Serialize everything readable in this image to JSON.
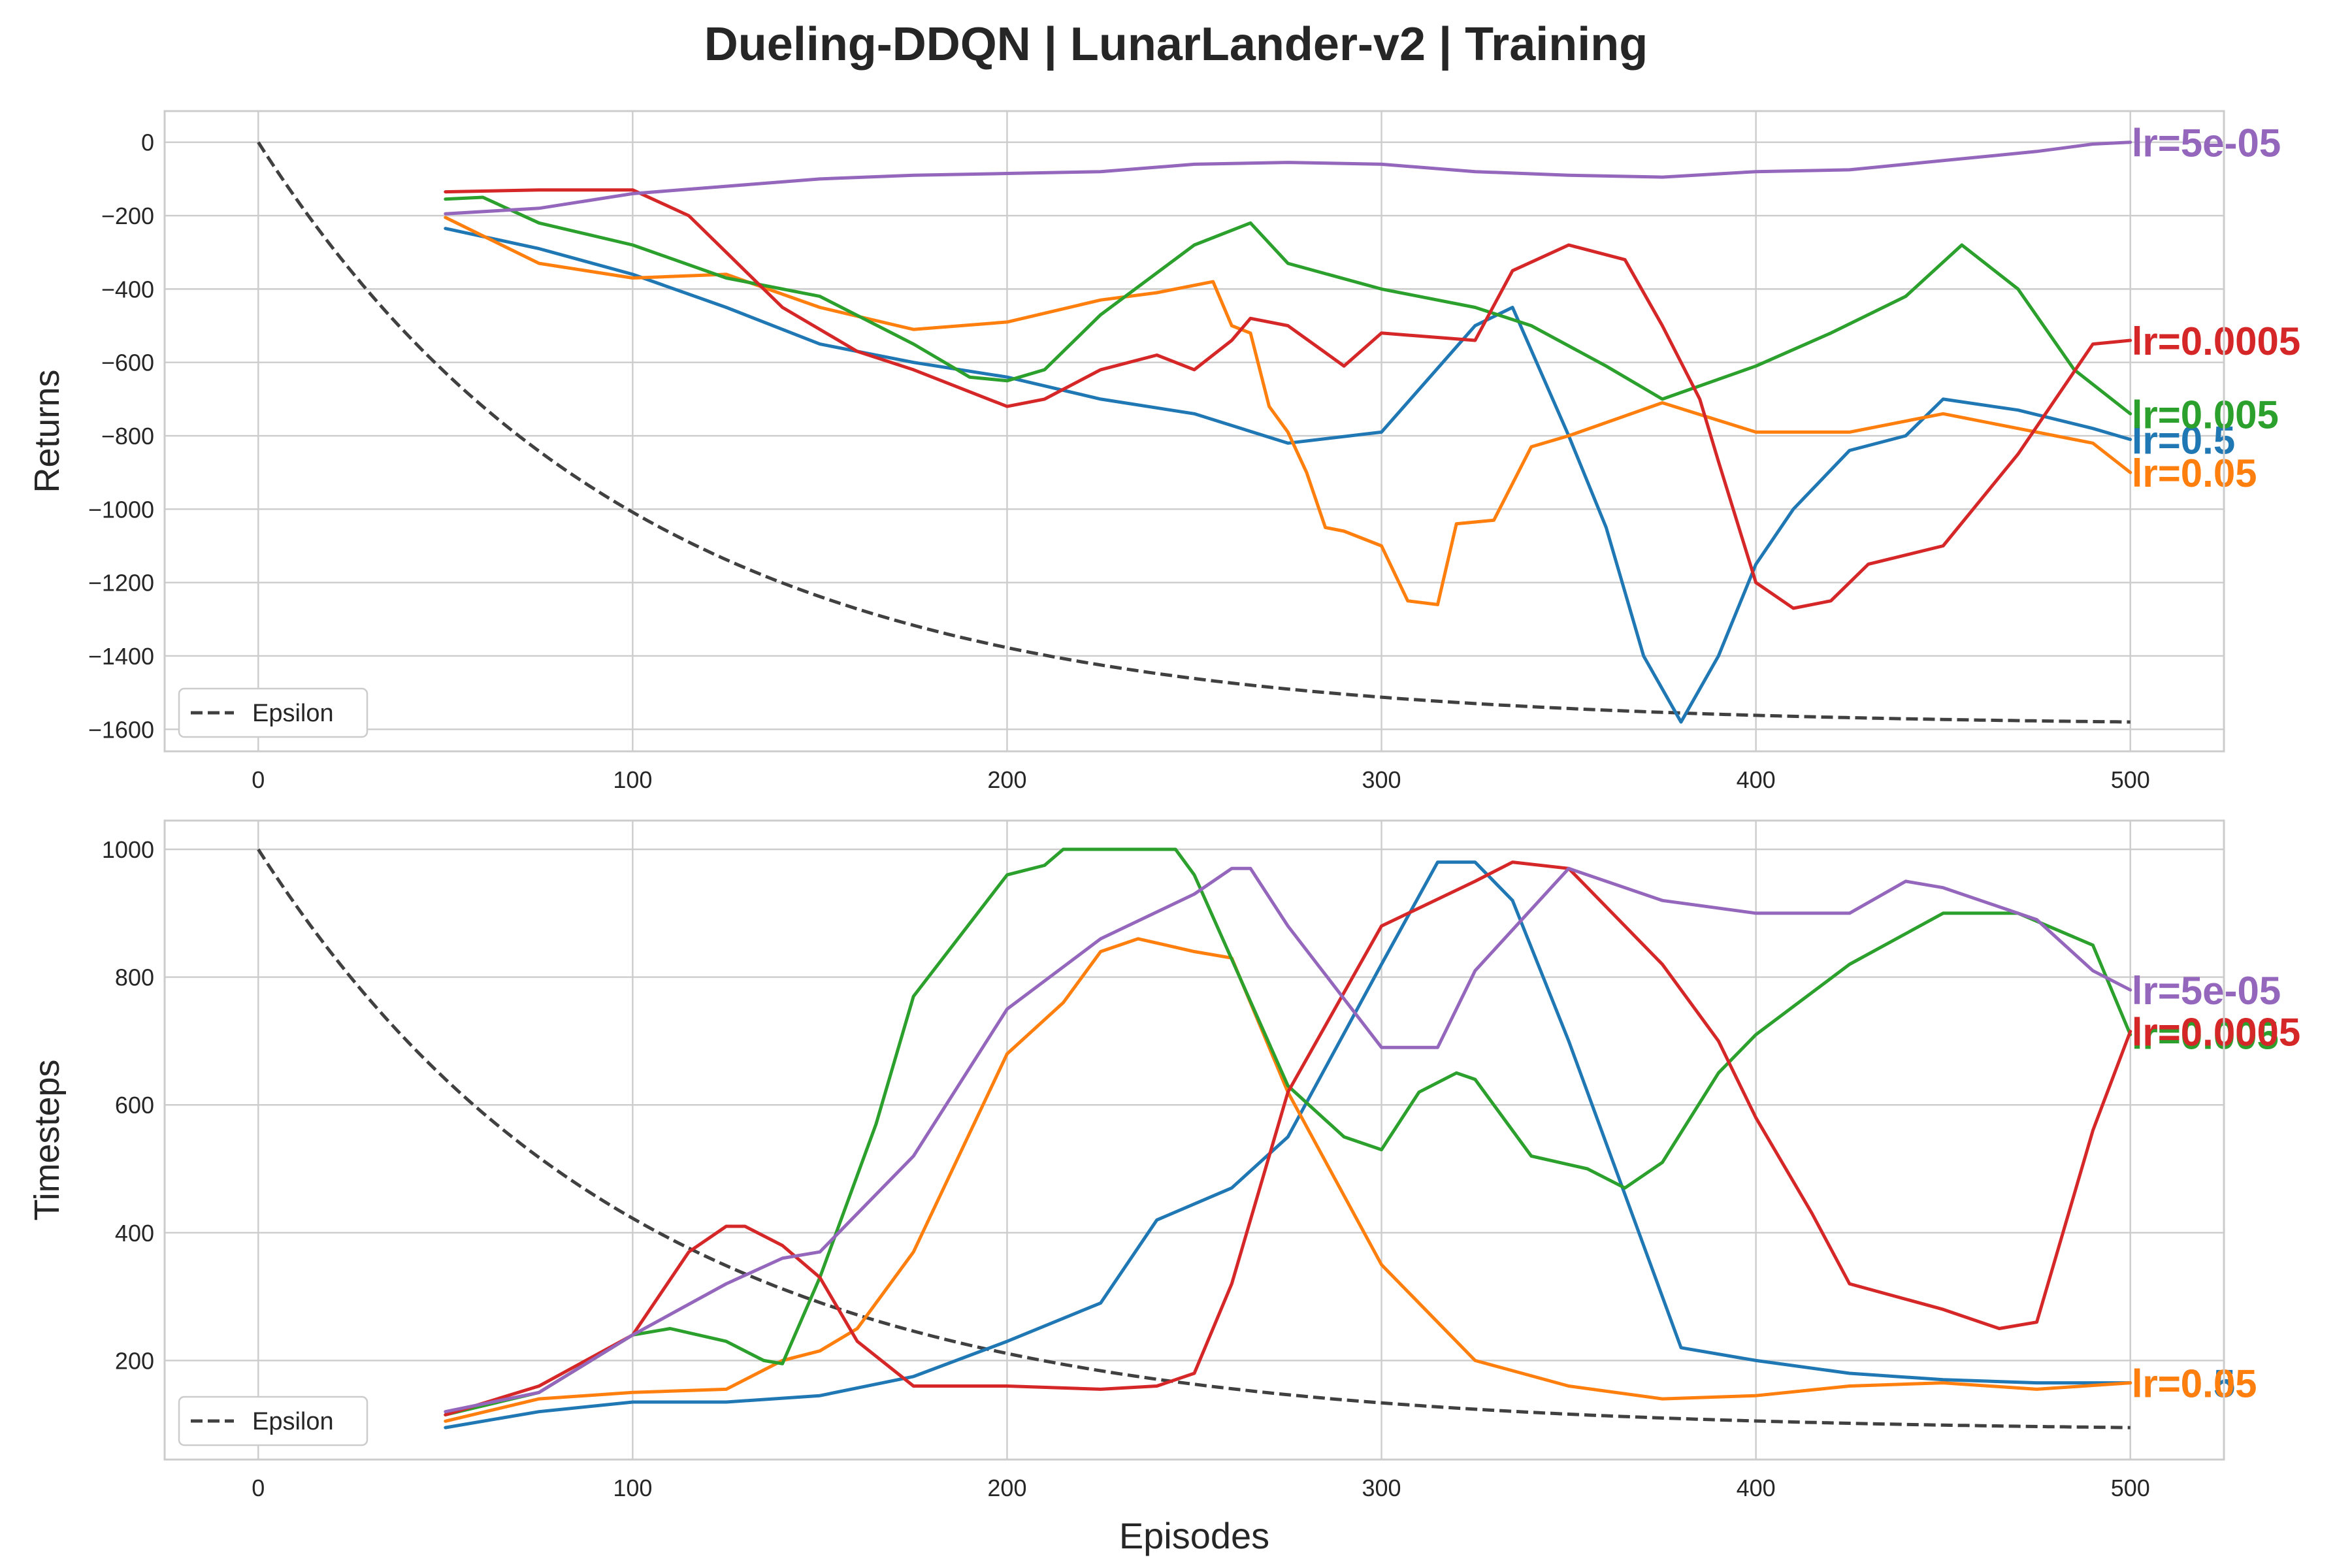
{
  "title": "Dueling-DDQN | LunarLander-v2 | Training",
  "colors": {
    "lr=0.5": "#1f77b4",
    "lr=0.05": "#ff7f0e",
    "lr=0.005": "#2ca02c",
    "lr=0.0005": "#d62728",
    "lr=5e-05": "#9467bd",
    "Epsilon": "#404040"
  },
  "chart_data": [
    {
      "type": "line",
      "title": "",
      "xlabel": "",
      "ylabel": "Returns",
      "xlim": [
        -25,
        525
      ],
      "ylim": [
        -1660,
        85
      ],
      "xticks": [
        0,
        100,
        200,
        300,
        400,
        500
      ],
      "yticks": [
        0,
        -200,
        -400,
        -600,
        -800,
        -1000,
        -1200,
        -1400,
        -1600
      ],
      "grid": true,
      "legend": {
        "position": "lower-left",
        "entries": [
          "Epsilon"
        ]
      },
      "epsilon": {
        "name": "Epsilon",
        "style": "dashed",
        "x_range": [
          0,
          500
        ],
        "y_start": 0,
        "y_end": -1580,
        "decay": 0.99
      },
      "series": [
        {
          "name": "lr=0.5",
          "end_label": "lr=0.5",
          "x": [
            50,
            75,
            100,
            125,
            150,
            175,
            200,
            225,
            250,
            275,
            300,
            325,
            335,
            350,
            360,
            370,
            380,
            390,
            400,
            410,
            425,
            440,
            450,
            470,
            490,
            500
          ],
          "y": [
            -235,
            -290,
            -360,
            -450,
            -550,
            -600,
            -640,
            -700,
            -740,
            -820,
            -790,
            -500,
            -450,
            -800,
            -1050,
            -1400,
            -1580,
            -1400,
            -1150,
            -1000,
            -840,
            -800,
            -700,
            -730,
            -780,
            -810
          ]
        },
        {
          "name": "lr=0.05",
          "end_label": "lr=0.05",
          "x": [
            50,
            75,
            100,
            125,
            150,
            175,
            200,
            225,
            240,
            255,
            260,
            265,
            270,
            275,
            280,
            285,
            290,
            300,
            307,
            315,
            320,
            330,
            340,
            350,
            375,
            400,
            425,
            450,
            470,
            490,
            500
          ],
          "y": [
            -205,
            -330,
            -370,
            -360,
            -450,
            -510,
            -490,
            -430,
            -410,
            -380,
            -500,
            -520,
            -720,
            -790,
            -900,
            -1050,
            -1060,
            -1100,
            -1250,
            -1260,
            -1040,
            -1030,
            -830,
            -800,
            -710,
            -790,
            -790,
            -740,
            -780,
            -820,
            -900
          ]
        },
        {
          "name": "lr=0.005",
          "end_label": "lr=0.005",
          "x": [
            50,
            60,
            75,
            100,
            125,
            150,
            175,
            190,
            200,
            210,
            225,
            250,
            265,
            275,
            300,
            325,
            340,
            360,
            375,
            400,
            420,
            440,
            455,
            470,
            485,
            500
          ],
          "y": [
            -155,
            -150,
            -220,
            -280,
            -370,
            -420,
            -550,
            -640,
            -650,
            -620,
            -470,
            -280,
            -220,
            -330,
            -400,
            -450,
            -500,
            -610,
            -700,
            -610,
            -520,
            -420,
            -280,
            -400,
            -620,
            -740
          ]
        },
        {
          "name": "lr=0.0005",
          "end_label": "lr=0.0005",
          "x": [
            50,
            75,
            100,
            115,
            125,
            140,
            160,
            175,
            200,
            210,
            225,
            240,
            250,
            260,
            265,
            275,
            290,
            300,
            325,
            335,
            350,
            365,
            375,
            385,
            390,
            400,
            410,
            420,
            430,
            450,
            470,
            490,
            500
          ],
          "y": [
            -135,
            -130,
            -130,
            -200,
            -300,
            -450,
            -570,
            -620,
            -720,
            -700,
            -620,
            -580,
            -620,
            -540,
            -480,
            -500,
            -610,
            -520,
            -540,
            -350,
            -280,
            -320,
            -500,
            -700,
            -870,
            -1200,
            -1270,
            -1250,
            -1150,
            -1100,
            -850,
            -550,
            -540
          ]
        },
        {
          "name": "lr=5e-05",
          "end_label": "lr=5e-05",
          "x": [
            50,
            75,
            100,
            125,
            150,
            175,
            200,
            225,
            250,
            275,
            300,
            325,
            350,
            375,
            400,
            425,
            450,
            475,
            490,
            500
          ],
          "y": [
            -195,
            -180,
            -140,
            -120,
            -100,
            -90,
            -85,
            -80,
            -60,
            -55,
            -60,
            -80,
            -90,
            -95,
            -80,
            -75,
            -50,
            -25,
            -5,
            0
          ]
        }
      ]
    },
    {
      "type": "line",
      "title": "",
      "xlabel": "Episodes",
      "ylabel": "Timesteps",
      "xlim": [
        -25,
        525
      ],
      "ylim": [
        45,
        1045
      ],
      "xticks": [
        0,
        100,
        200,
        300,
        400,
        500
      ],
      "yticks": [
        200,
        400,
        600,
        800,
        1000
      ],
      "grid": true,
      "legend": {
        "position": "lower-left",
        "entries": [
          "Epsilon"
        ]
      },
      "epsilon": {
        "name": "Epsilon",
        "style": "dashed",
        "x_range": [
          0,
          500
        ],
        "y_start": 1000,
        "y_end": 95,
        "decay": 0.99
      },
      "series": [
        {
          "name": "lr=0.5",
          "end_label": "lr=0.5",
          "x": [
            50,
            75,
            100,
            125,
            150,
            175,
            200,
            225,
            240,
            260,
            275,
            300,
            315,
            325,
            335,
            350,
            375,
            380,
            400,
            425,
            450,
            475,
            500
          ],
          "y": [
            95,
            120,
            135,
            135,
            145,
            175,
            230,
            290,
            420,
            470,
            550,
            820,
            980,
            980,
            920,
            700,
            300,
            220,
            200,
            180,
            170,
            165,
            165
          ]
        },
        {
          "name": "lr=0.05",
          "end_label": "lr=0.05",
          "x": [
            50,
            75,
            100,
            125,
            140,
            150,
            160,
            175,
            200,
            215,
            225,
            235,
            250,
            260,
            275,
            300,
            325,
            350,
            375,
            400,
            425,
            450,
            475,
            500
          ],
          "y": [
            105,
            140,
            150,
            155,
            200,
            215,
            250,
            370,
            680,
            760,
            840,
            860,
            840,
            830,
            620,
            350,
            200,
            160,
            140,
            145,
            160,
            165,
            155,
            165
          ]
        },
        {
          "name": "lr=0.005",
          "end_label": "lr=0.005",
          "x": [
            50,
            75,
            100,
            110,
            125,
            135,
            140,
            150,
            165,
            175,
            200,
            210,
            215,
            235,
            245,
            250,
            275,
            290,
            300,
            310,
            320,
            325,
            340,
            355,
            365,
            375,
            390,
            400,
            425,
            450,
            470,
            490,
            500
          ],
          "y": [
            115,
            150,
            240,
            250,
            230,
            200,
            195,
            330,
            570,
            770,
            960,
            975,
            1000,
            1000,
            1000,
            960,
            630,
            550,
            530,
            620,
            650,
            640,
            520,
            500,
            470,
            510,
            650,
            710,
            820,
            900,
            900,
            850,
            710
          ]
        },
        {
          "name": "lr=0.0005",
          "end_label": "lr=0.0005",
          "x": [
            50,
            75,
            100,
            115,
            125,
            130,
            140,
            150,
            160,
            175,
            200,
            225,
            240,
            250,
            260,
            275,
            300,
            325,
            335,
            350,
            375,
            390,
            400,
            415,
            425,
            450,
            465,
            475,
            490,
            500
          ],
          "y": [
            115,
            160,
            240,
            370,
            410,
            410,
            380,
            330,
            230,
            160,
            160,
            155,
            160,
            180,
            320,
            620,
            880,
            950,
            980,
            970,
            820,
            700,
            580,
            430,
            320,
            280,
            250,
            260,
            560,
            715
          ]
        },
        {
          "name": "lr=5e-05",
          "end_label": "lr=5e-05",
          "x": [
            50,
            75,
            100,
            125,
            140,
            150,
            175,
            200,
            225,
            250,
            260,
            265,
            275,
            300,
            315,
            325,
            350,
            375,
            400,
            425,
            440,
            450,
            475,
            490,
            500
          ],
          "y": [
            120,
            150,
            240,
            320,
            360,
            370,
            520,
            750,
            860,
            930,
            970,
            970,
            880,
            690,
            690,
            810,
            970,
            920,
            900,
            900,
            950,
            940,
            890,
            810,
            780
          ]
        }
      ]
    }
  ]
}
